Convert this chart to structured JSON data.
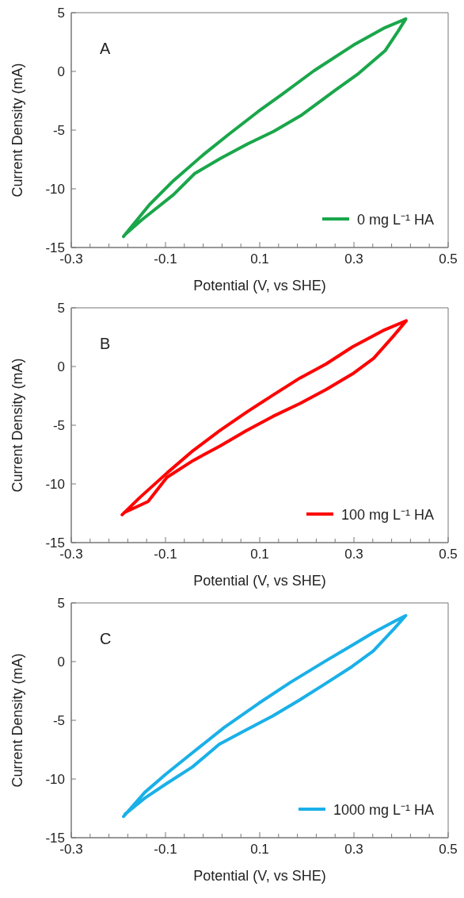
{
  "chart_data": [
    {
      "type": "line",
      "annotations": [
        "A"
      ],
      "xlabel": "Potential (V, vs SHE)",
      "ylabel": "Current Density (mA)",
      "legend": "bottom right",
      "xlim": [
        -0.3,
        0.5
      ],
      "ylim": [
        -15,
        5
      ],
      "xticks": [
        -0.3,
        {
          "value": -0.26,
          "label": null
        },
        {
          "value": -0.22,
          "label": null
        },
        {
          "value": -0.18,
          "label": null
        },
        {
          "value": -0.14,
          "label": null
        },
        -0.1,
        {
          "value": -0.06,
          "label": null
        },
        {
          "value": -0.02,
          "label": null
        },
        {
          "value": 0.02,
          "label": null
        },
        {
          "value": 0.06,
          "label": null
        },
        0.1,
        {
          "value": 0.14,
          "label": null
        },
        {
          "value": 0.18,
          "label": null
        },
        {
          "value": 0.22,
          "label": null
        },
        {
          "value": 0.26,
          "label": null
        },
        0.3,
        {
          "value": 0.34,
          "label": null
        },
        {
          "value": 0.38,
          "label": null
        },
        {
          "value": 0.42,
          "label": null
        },
        {
          "value": 0.46,
          "label": null
        },
        0.5
      ],
      "yticks": [
        -15,
        -10,
        -5,
        0,
        5
      ],
      "series": [
        {
          "name": "0 mg L⁻¹ HA",
          "color": "#1aa64a",
          "x": [
            -0.189,
            -0.134,
            -0.083,
            -0.021,
            0.035,
            0.097,
            0.147,
            0.215,
            0.299,
            0.366,
            0.41,
            0.394,
            0.366,
            0.31,
            0.26,
            0.187,
            0.13,
            0.074,
            0.018,
            -0.038,
            -0.083,
            -0.151,
            -0.186
          ],
          "values": [
            -14.06,
            -11.35,
            -9.3,
            -7.14,
            -5.34,
            -3.41,
            -1.97,
            0.05,
            2.24,
            3.73,
            4.47,
            3.44,
            1.75,
            -0.17,
            -1.61,
            -3.77,
            -5.1,
            -6.18,
            -7.38,
            -8.7,
            -10.5,
            -12.67,
            -13.9
          ]
        }
      ]
    },
    {
      "type": "line",
      "annotations": [
        "B"
      ],
      "xlabel": "Potential (V, vs SHE)",
      "ylabel": "Current Density (mA)",
      "legend": "bottom right",
      "xlim": [
        -0.3,
        0.5
      ],
      "ylim": [
        -15,
        5
      ],
      "xticks": [
        -0.3,
        {
          "value": -0.26,
          "label": null
        },
        {
          "value": -0.22,
          "label": null
        },
        {
          "value": -0.18,
          "label": null
        },
        {
          "value": -0.14,
          "label": null
        },
        -0.1,
        {
          "value": -0.06,
          "label": null
        },
        {
          "value": -0.02,
          "label": null
        },
        {
          "value": 0.02,
          "label": null
        },
        {
          "value": 0.06,
          "label": null
        },
        0.1,
        {
          "value": 0.14,
          "label": null
        },
        {
          "value": 0.18,
          "label": null
        },
        {
          "value": 0.22,
          "label": null
        },
        {
          "value": 0.26,
          "label": null
        },
        0.3,
        {
          "value": 0.34,
          "label": null
        },
        {
          "value": 0.38,
          "label": null
        },
        {
          "value": 0.42,
          "label": null
        },
        {
          "value": 0.46,
          "label": null
        },
        0.5
      ],
      "yticks": [
        -15,
        -10,
        -5,
        0,
        5
      ],
      "series": [
        {
          "name": "100 mg L⁻¹ HA",
          "color": "#ff0000",
          "x": [
            -0.192,
            -0.154,
            -0.097,
            -0.041,
            0.015,
            0.072,
            0.128,
            0.185,
            0.241,
            0.297,
            0.365,
            0.411,
            0.382,
            0.342,
            0.297,
            0.241,
            0.185,
            0.128,
            0.072,
            0.015,
            -0.041,
            -0.097,
            -0.137,
            -0.188
          ],
          "values": [
            -12.63,
            -11.14,
            -9.08,
            -7.15,
            -5.46,
            -3.89,
            -2.44,
            -0.99,
            0.22,
            1.67,
            3.12,
            3.89,
            2.51,
            0.7,
            -0.63,
            -1.96,
            -3.16,
            -4.25,
            -5.46,
            -6.79,
            -8.0,
            -9.44,
            -11.5,
            -12.45
          ]
        }
      ]
    },
    {
      "type": "line",
      "annotations": [
        "C"
      ],
      "xlabel": "Potential (V, vs SHE)",
      "ylabel": "Current Density (mA)",
      "legend": "bottom right",
      "xlim": [
        -0.3,
        0.5
      ],
      "ylim": [
        -15,
        5
      ],
      "xticks": [
        -0.3,
        {
          "value": -0.26,
          "label": null
        },
        {
          "value": -0.22,
          "label": null
        },
        {
          "value": -0.18,
          "label": null
        },
        {
          "value": -0.14,
          "label": null
        },
        -0.1,
        {
          "value": -0.06,
          "label": null
        },
        {
          "value": -0.02,
          "label": null
        },
        {
          "value": 0.02,
          "label": null
        },
        {
          "value": 0.06,
          "label": null
        },
        0.1,
        {
          "value": 0.14,
          "label": null
        },
        {
          "value": 0.18,
          "label": null
        },
        {
          "value": 0.22,
          "label": null
        },
        {
          "value": 0.26,
          "label": null
        },
        0.3,
        {
          "value": 0.34,
          "label": null
        },
        {
          "value": 0.38,
          "label": null
        },
        {
          "value": 0.42,
          "label": null
        },
        {
          "value": 0.46,
          "label": null
        },
        0.5
      ],
      "yticks": [
        -15,
        -10,
        -5,
        0,
        5
      ],
      "series": [
        {
          "name": "1000 mg L⁻¹ HA",
          "color": "#1ab0e8",
          "x": [
            -0.189,
            -0.144,
            -0.099,
            -0.043,
            0.025,
            0.098,
            0.166,
            0.24,
            0.296,
            0.341,
            0.386,
            0.41,
            0.386,
            0.341,
            0.296,
            0.24,
            0.183,
            0.127,
            0.07,
            0.014,
            -0.043,
            -0.099,
            -0.144,
            -0.186
          ],
          "values": [
            -13.19,
            -11.14,
            -9.58,
            -7.77,
            -5.6,
            -3.55,
            -1.75,
            0.06,
            1.39,
            2.47,
            3.43,
            3.92,
            2.83,
            0.9,
            -0.42,
            -1.87,
            -3.31,
            -4.64,
            -5.84,
            -7.05,
            -8.98,
            -10.42,
            -11.63,
            -13.0
          ]
        }
      ]
    }
  ]
}
